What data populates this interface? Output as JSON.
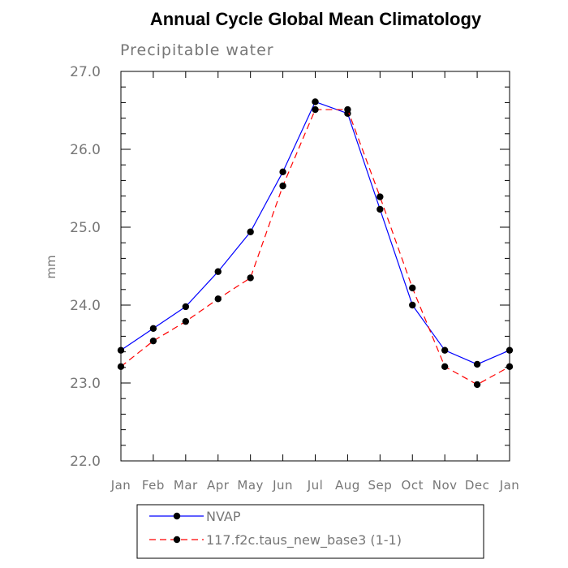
{
  "chart_data": {
    "type": "line",
    "title": "Annual Cycle Global Mean Climatology",
    "subtitle": "Precipitable water",
    "ylabel": "mm",
    "ylim": [
      22.0,
      27.0
    ],
    "yticks": [
      "22.0",
      "23.0",
      "24.0",
      "25.0",
      "26.0",
      "27.0"
    ],
    "ytick_values": [
      22,
      23,
      24,
      25,
      26,
      27
    ],
    "categories": [
      "Jan",
      "Feb",
      "Mar",
      "Apr",
      "May",
      "Jun",
      "Jul",
      "Aug",
      "Sep",
      "Oct",
      "Nov",
      "Dec",
      "Jan"
    ],
    "series": [
      {
        "name": "NVAP",
        "color": "#0000ff",
        "dash": "solid",
        "values": [
          23.42,
          23.7,
          23.98,
          24.43,
          24.94,
          25.71,
          26.61,
          26.46,
          25.23,
          24.0,
          23.42,
          23.24,
          23.42
        ]
      },
      {
        "name": "117.f2c.taus_new_base3 (1-1)",
        "color": "#ff0000",
        "dash": "dashed",
        "values": [
          23.21,
          23.54,
          23.79,
          24.08,
          24.35,
          25.53,
          26.51,
          26.51,
          25.39,
          24.22,
          23.21,
          22.98,
          23.21
        ]
      }
    ],
    "grid": false,
    "legend_position": "bottom"
  }
}
